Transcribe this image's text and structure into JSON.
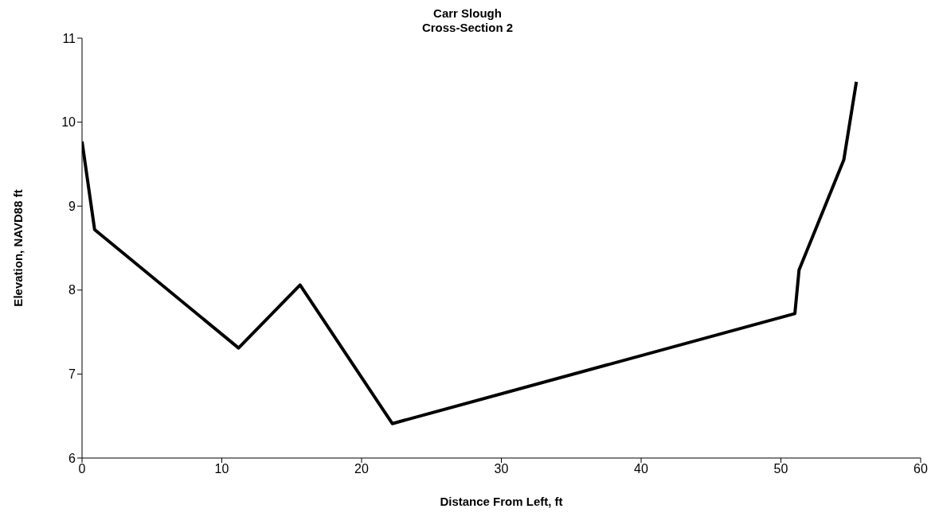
{
  "chart_data": {
    "type": "line",
    "title": "Carr Slough",
    "subtitle": "Cross-Section 2",
    "xlabel": "Distance From Left, ft",
    "ylabel": "Elevation, NAVD88 ft",
    "x": [
      0,
      0.9,
      11.2,
      15.6,
      22.2,
      51.0,
      51.3,
      54.5,
      55.4
    ],
    "series": [
      {
        "color": "#000000",
        "values": [
          9.77,
          8.72,
          7.31,
          8.06,
          6.41,
          7.72,
          8.24,
          9.55,
          10.48
        ]
      }
    ],
    "xlim": [
      0,
      60
    ],
    "xticks": [
      0,
      10,
      20,
      30,
      40,
      50,
      60
    ],
    "ylim": [
      6,
      11
    ],
    "yticks": [
      6,
      7,
      8,
      9,
      10,
      11
    ],
    "grid": false,
    "marker": "none",
    "line_style": "solid",
    "legend": false
  }
}
